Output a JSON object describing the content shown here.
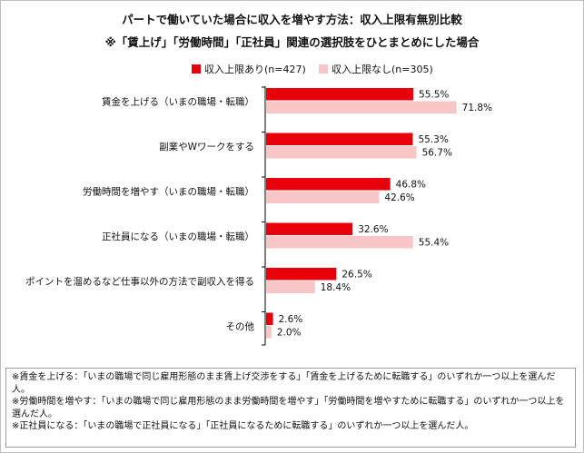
{
  "titles": {
    "line1": "パートで働いていた場合に収入を増やす方法：収入上限有無別比較",
    "line2": "※「賃上げ」「労働時間」「正社員」関連の選択肢をひとまとめにした場合"
  },
  "chart_data": {
    "type": "bar",
    "orientation": "horizontal",
    "categories": [
      "賃金を上げる（いまの職場・転職）",
      "副業やWワークをする",
      "労働時間を増やす（いまの職場・転職）",
      "正社員になる（いまの職場・転職）",
      "ポイントを溜めるなど仕事以外の方法で副収入を得る",
      "その他"
    ],
    "series": [
      {
        "name": "収入上限あり(n=427)",
        "color": "#e8000b",
        "values": [
          55.5,
          55.3,
          46.8,
          32.6,
          26.5,
          2.6
        ],
        "labels": [
          "55.5%",
          "55.3%",
          "46.8%",
          "32.6%",
          "26.5%",
          "2.6%"
        ]
      },
      {
        "name": "収入上限なし(n=305)",
        "color": "#f8c6c6",
        "values": [
          71.8,
          56.7,
          42.6,
          55.4,
          18.4,
          2.0
        ],
        "labels": [
          "71.8%",
          "56.7%",
          "42.6%",
          "55.4%",
          "18.4%",
          "2.0%"
        ]
      }
    ],
    "xlim": [
      0,
      100
    ],
    "legend_position": "top-left",
    "grid": false
  },
  "notes": [
    "※賃金を上げる：「いまの職場で同じ雇用形態のまま賃上げ交渉をする」「賃金を上げるために転職する」のいずれか一つ以上を選んだ人。",
    "※労働時間を増やす：「いまの職場で同じ雇用形態のまま労働時間を増やす」「労働時間を増やすために転職する」のいずれか一つ以上を選んだ人。",
    "※正社員になる：「いまの職場で正社員になる」「正社員になるために転職する」のいずれか一つ以上を選んだ人。"
  ]
}
